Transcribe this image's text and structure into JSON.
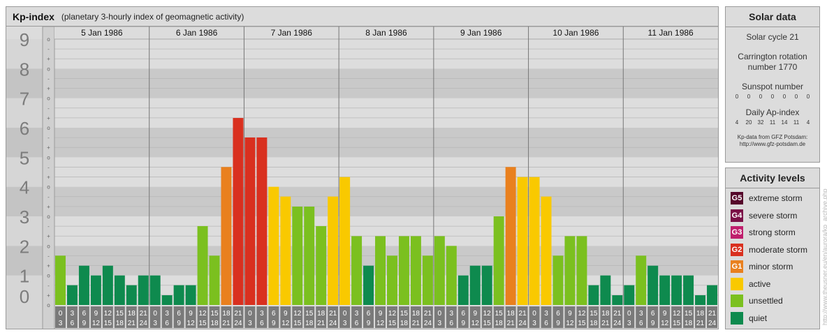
{
  "header": {
    "title": "Kp-index",
    "subtitle": "(planetary 3-hourly index of geomagnetic activity)"
  },
  "chart_data": {
    "type": "bar",
    "title": "Kp-index",
    "subtitle": "(planetary 3-hourly index of geomagnetic activity)",
    "ylim": [
      0,
      9
    ],
    "y_ticks": [
      "0",
      "1",
      "2",
      "3",
      "4",
      "5",
      "6",
      "7",
      "8",
      "9"
    ],
    "minor_tick_labels": [
      "o",
      "+",
      "-"
    ],
    "days": [
      "5 Jan 1986",
      "6 Jan 1986",
      "7 Jan 1986",
      "8 Jan 1986",
      "9 Jan 1986",
      "10 Jan 1986",
      "11 Jan 1986"
    ],
    "interval_labels": [
      [
        "0",
        "3"
      ],
      [
        "3",
        "6"
      ],
      [
        "6",
        "9"
      ],
      [
        "9",
        "12"
      ],
      [
        "12",
        "15"
      ],
      [
        "15",
        "18"
      ],
      [
        "18",
        "21"
      ],
      [
        "21",
        "24"
      ]
    ],
    "values": [
      1.67,
      0.67,
      1.33,
      1.0,
      1.33,
      1.0,
      0.67,
      1.0,
      1.0,
      0.33,
      0.67,
      0.67,
      2.67,
      1.67,
      4.67,
      6.33,
      5.67,
      5.67,
      4.0,
      3.67,
      3.33,
      3.33,
      2.67,
      3.67,
      4.33,
      2.33,
      1.33,
      2.33,
      1.67,
      2.33,
      2.33,
      1.67,
      2.33,
      2.0,
      1.0,
      1.33,
      1.33,
      3.0,
      4.67,
      4.33,
      4.33,
      3.67,
      1.67,
      2.33,
      2.33,
      0.67,
      1.0,
      0.33,
      0.67,
      1.67,
      1.33,
      1.0,
      1.0,
      1.0,
      0.33,
      0.67
    ],
    "grid": true,
    "legend_position": "right"
  },
  "colors": {
    "quiet": "#0e8a4e",
    "unsettled": "#7bc01f",
    "active": "#f9c900",
    "minor_storm": "#e9801e",
    "moderate_storm": "#d9301f",
    "strong_storm": "#bf1e6c",
    "severe_storm": "#7a1046",
    "extreme_storm": "#55062a"
  },
  "solar": {
    "title": "Solar data",
    "cycle": "Solar cycle 21",
    "carrington_line1": "Carrington rotation",
    "carrington_line2": "number 1770",
    "sunspot_label": "Sunspot number",
    "sunspot_values": [
      "0",
      "0",
      "0",
      "0",
      "0",
      "0",
      "0"
    ],
    "ap_label": "Daily Ap-index",
    "ap_values": [
      "4",
      "20",
      "32",
      "11",
      "14",
      "11",
      "4"
    ],
    "credit_line1": "Kp-data from GFZ Potsdam:",
    "credit_line2": "http://www.gfz-potsdam.de"
  },
  "activity": {
    "title": "Activity levels",
    "items": [
      {
        "badge": "G5",
        "label": "extreme storm",
        "color": "#55062a"
      },
      {
        "badge": "G4",
        "label": "severe storm",
        "color": "#7a1046"
      },
      {
        "badge": "G3",
        "label": "strong storm",
        "color": "#bf1e6c"
      },
      {
        "badge": "G2",
        "label": "moderate storm",
        "color": "#d9301f"
      },
      {
        "badge": "G1",
        "label": "minor storm",
        "color": "#e9801e"
      },
      {
        "badge": "",
        "label": "active",
        "color": "#f9c900"
      },
      {
        "badge": "",
        "label": "unsettled",
        "color": "#7bc01f"
      },
      {
        "badge": "",
        "label": "quiet",
        "color": "#0e8a4e"
      }
    ]
  },
  "watermark": "http://www.theusner.eu/en/aurora/kp_archive.php"
}
